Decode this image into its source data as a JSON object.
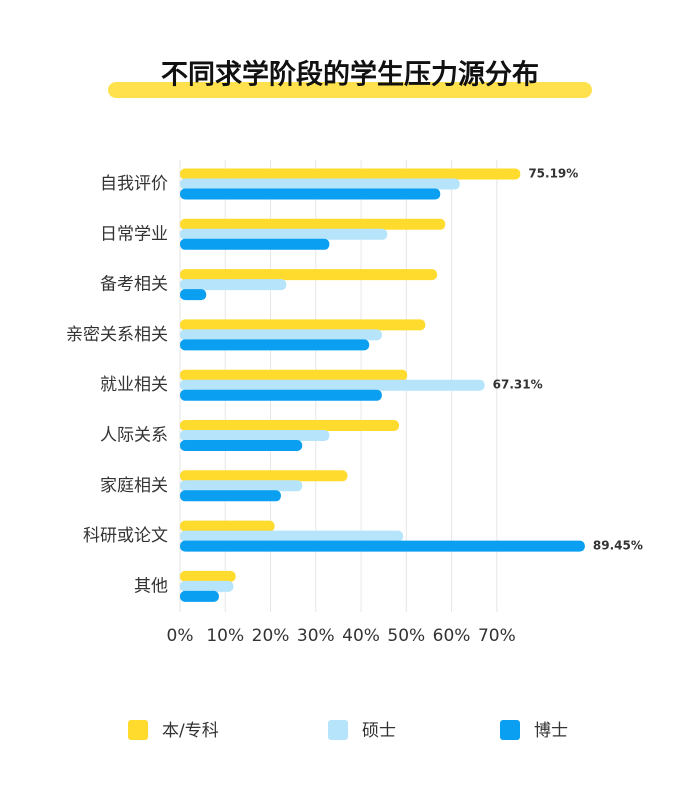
{
  "chart_data": {
    "type": "hbar",
    "title": "不同求学阶段的学生压力源分布",
    "categories": [
      "自我评价",
      "日常学业",
      "备考相关",
      "亲密关系相关",
      "就业相关",
      "人际关系",
      "家庭相关",
      "科研或论文",
      "其他"
    ],
    "series": [
      {
        "name": "本/专科",
        "color": "#FFDB2E",
        "values": [
          75.19,
          58.6,
          56.8,
          54.2,
          50.2,
          48.4,
          37.0,
          20.9,
          12.3
        ],
        "value_labels": [
          "75.19%",
          null,
          null,
          null,
          null,
          null,
          null,
          null,
          null
        ]
      },
      {
        "name": "硕士",
        "color": "#B5E4FB",
        "values": [
          61.8,
          45.8,
          23.5,
          44.6,
          67.31,
          33.0,
          27.0,
          49.3,
          11.8
        ],
        "value_labels": [
          null,
          null,
          null,
          null,
          "67.31%",
          null,
          null,
          null,
          null
        ]
      },
      {
        "name": "博士",
        "color": "#0A9FF0",
        "values": [
          57.5,
          33.0,
          5.8,
          41.8,
          44.6,
          27.0,
          22.3,
          89.45,
          8.6
        ],
        "value_labels": [
          null,
          null,
          null,
          null,
          null,
          null,
          null,
          "89.45%",
          null
        ]
      }
    ],
    "xlim": [
      0,
      95
    ],
    "xticks": [
      {
        "value": 0,
        "label": "0%"
      },
      {
        "value": 10,
        "label": "10%"
      },
      {
        "value": 20,
        "label": "20%"
      },
      {
        "value": 30,
        "label": "30%"
      },
      {
        "value": 40,
        "label": "40%"
      },
      {
        "value": 50,
        "label": "50%"
      },
      {
        "value": 60,
        "label": "60%"
      },
      {
        "value": 70,
        "label": "70%"
      }
    ],
    "grid": true,
    "legend": "bottom"
  }
}
